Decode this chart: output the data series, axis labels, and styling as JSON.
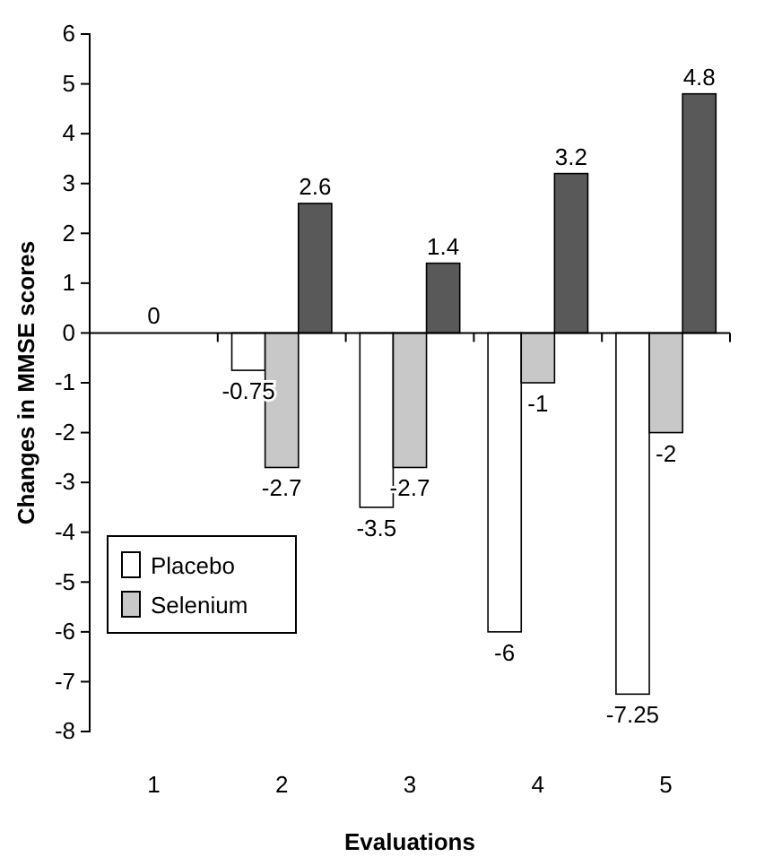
{
  "chart_data": {
    "type": "bar",
    "xlabel": "Evaluations",
    "ylabel": "Changes in MMSE scores",
    "categories": [
      "1",
      "2",
      "3",
      "4",
      "5"
    ],
    "series": [
      {
        "name": "Placebo",
        "color": "#ffffff",
        "values": [
          0,
          -0.75,
          -3.5,
          -6,
          -7.25
        ],
        "value_labels": [
          null,
          "-0.75",
          "-3.5",
          "-6",
          "-7.25"
        ]
      },
      {
        "name": "Selenium",
        "color": "#c8c8c8",
        "values": [
          0,
          -2.7,
          -2.7,
          -1,
          -2
        ],
        "value_labels": [
          "0",
          "-2.7",
          "-2.7",
          "-1",
          "-2"
        ]
      },
      {
        "color": "#595959",
        "values": [
          0,
          2.6,
          1.4,
          3.2,
          4.8
        ],
        "value_labels": [
          null,
          "2.6",
          "1.4",
          "3.2",
          "4.8"
        ]
      }
    ],
    "ylim": [
      -8,
      6
    ],
    "yticks": [
      -8,
      -7,
      -6,
      -5,
      -4,
      -3,
      -2,
      -1,
      0,
      1,
      2,
      3,
      4,
      5,
      6
    ],
    "legend": "bottom left"
  }
}
